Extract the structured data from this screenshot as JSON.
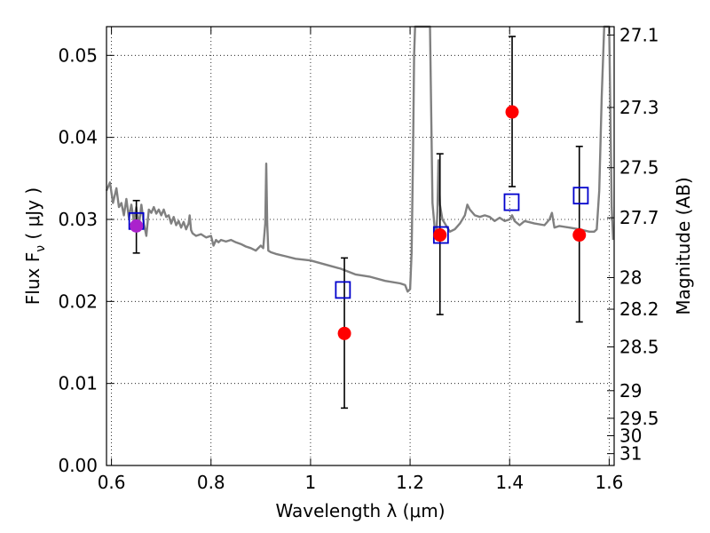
{
  "chart_data": {
    "type": "scatter",
    "xlabel": "Wavelength  λ (μm)",
    "ylabel": "Flux  F",
    "ylabel_subscript": "ν",
    "ylabel_unit": "  ( μJy )",
    "y2label": "Magnitude (AB)",
    "xlim": [
      0.59,
      1.61
    ],
    "ylim": [
      0.0,
      0.0535
    ],
    "grid": true,
    "xticks": [
      {
        "value": 0.6,
        "label": "0.6"
      },
      {
        "value": 0.8,
        "label": "0.8"
      },
      {
        "value": 1.0,
        "label": "1"
      },
      {
        "value": 1.2,
        "label": "1.2"
      },
      {
        "value": 1.4,
        "label": "1.4"
      },
      {
        "value": 1.6,
        "label": "1.6"
      }
    ],
    "yticks": [
      {
        "value": 0.0,
        "label": "0.00"
      },
      {
        "value": 0.01,
        "label": "0.01"
      },
      {
        "value": 0.02,
        "label": "0.02"
      },
      {
        "value": 0.03,
        "label": "0.03"
      },
      {
        "value": 0.04,
        "label": "0.04"
      },
      {
        "value": 0.05,
        "label": "0.05"
      }
    ],
    "y2ticks": [
      {
        "value": 27.1,
        "label": "27.1"
      },
      {
        "value": 27.3,
        "label": "27.3"
      },
      {
        "value": 27.5,
        "label": "27.5"
      },
      {
        "value": 27.7,
        "label": "27.7"
      },
      {
        "value": 28.0,
        "label": "28"
      },
      {
        "value": 28.2,
        "label": "28.2"
      },
      {
        "value": 28.5,
        "label": "28.5"
      },
      {
        "value": 29.0,
        "label": "29"
      },
      {
        "value": 29.5,
        "label": "29.5"
      },
      {
        "value": 30.0,
        "label": "30"
      },
      {
        "value": 31.0,
        "label": "31"
      }
    ],
    "series": [
      {
        "kind": "line",
        "color": "#808080",
        "x": [
          0.59,
          0.597,
          0.603,
          0.61,
          0.615,
          0.62,
          0.625,
          0.63,
          0.635,
          0.64,
          0.645,
          0.65,
          0.655,
          0.66,
          0.665,
          0.67,
          0.675,
          0.68,
          0.685,
          0.69,
          0.695,
          0.7,
          0.705,
          0.71,
          0.715,
          0.72,
          0.725,
          0.73,
          0.735,
          0.74,
          0.745,
          0.75,
          0.755,
          0.757,
          0.76,
          0.763,
          0.77,
          0.78,
          0.79,
          0.8,
          0.805,
          0.81,
          0.815,
          0.82,
          0.83,
          0.84,
          0.85,
          0.86,
          0.87,
          0.88,
          0.89,
          0.9,
          0.905,
          0.909,
          0.911,
          0.913,
          0.915,
          0.92,
          0.93,
          0.95,
          0.97,
          1.0,
          1.03,
          1.06,
          1.09,
          1.12,
          1.15,
          1.18,
          1.19,
          1.195,
          1.2,
          1.203,
          1.206,
          1.208,
          1.21,
          1.22,
          1.23,
          1.24,
          1.245,
          1.25,
          1.253,
          1.255,
          1.257,
          1.26,
          1.265,
          1.27,
          1.28,
          1.29,
          1.3,
          1.31,
          1.315,
          1.32,
          1.33,
          1.34,
          1.35,
          1.36,
          1.37,
          1.38,
          1.39,
          1.4,
          1.405,
          1.41,
          1.42,
          1.43,
          1.45,
          1.47,
          1.48,
          1.485,
          1.49,
          1.5,
          1.52,
          1.54,
          1.56,
          1.57,
          1.575,
          1.58,
          1.585,
          1.59,
          1.595,
          1.6,
          1.605,
          1.608
        ],
        "y": [
          0.0335,
          0.0345,
          0.032,
          0.0338,
          0.0315,
          0.032,
          0.0305,
          0.0325,
          0.0302,
          0.0318,
          0.0298,
          0.0315,
          0.0292,
          0.0318,
          0.0295,
          0.028,
          0.0312,
          0.0308,
          0.0315,
          0.0307,
          0.0312,
          0.0305,
          0.0312,
          0.0303,
          0.0305,
          0.0295,
          0.0303,
          0.0293,
          0.0298,
          0.029,
          0.0297,
          0.0288,
          0.0295,
          0.0305,
          0.0287,
          0.0283,
          0.028,
          0.0282,
          0.0278,
          0.028,
          0.0268,
          0.0275,
          0.0272,
          0.0275,
          0.0273,
          0.0275,
          0.0272,
          0.027,
          0.0267,
          0.0265,
          0.0262,
          0.0268,
          0.0265,
          0.0295,
          0.0368,
          0.0295,
          0.0262,
          0.026,
          0.0258,
          0.0255,
          0.0252,
          0.025,
          0.0245,
          0.024,
          0.0233,
          0.023,
          0.0225,
          0.0222,
          0.022,
          0.0212,
          0.0215,
          0.026,
          0.038,
          0.05,
          0.0535,
          0.0535,
          0.0535,
          0.0535,
          0.032,
          0.0285,
          0.0285,
          0.031,
          0.0372,
          0.0318,
          0.03,
          0.0295,
          0.0285,
          0.0288,
          0.0295,
          0.0305,
          0.0318,
          0.0312,
          0.0305,
          0.0303,
          0.0305,
          0.0303,
          0.0298,
          0.0302,
          0.0298,
          0.03,
          0.0305,
          0.0298,
          0.0293,
          0.0298,
          0.0295,
          0.0293,
          0.03,
          0.0308,
          0.029,
          0.0292,
          0.029,
          0.0288,
          0.0285,
          0.0285,
          0.0288,
          0.0335,
          0.045,
          0.0535,
          0.0535,
          0.0535,
          0.0315,
          0.0275
        ]
      },
      {
        "kind": "points",
        "marker": "square",
        "color": "#0000cc",
        "x": [
          0.65,
          1.065,
          1.262,
          1.404,
          1.543
        ],
        "y": [
          0.0298,
          0.0214,
          0.0281,
          0.0321,
          0.0329
        ]
      },
      {
        "kind": "points",
        "marker": "circle",
        "color": "#ff0000",
        "x": [
          0.65,
          1.068,
          1.26,
          1.405,
          1.54
        ],
        "y": [
          0.0292,
          0.0161,
          0.0281,
          0.0431,
          0.0281
        ],
        "yerr_low": [
          0.0259,
          0.007,
          0.0184,
          0.034,
          0.0175
        ],
        "yerr_high": [
          0.0323,
          0.0253,
          0.038,
          0.0523,
          0.0389
        ],
        "errbar_color": "#000000",
        "overlap_fill": "#aa22cc"
      }
    ]
  }
}
